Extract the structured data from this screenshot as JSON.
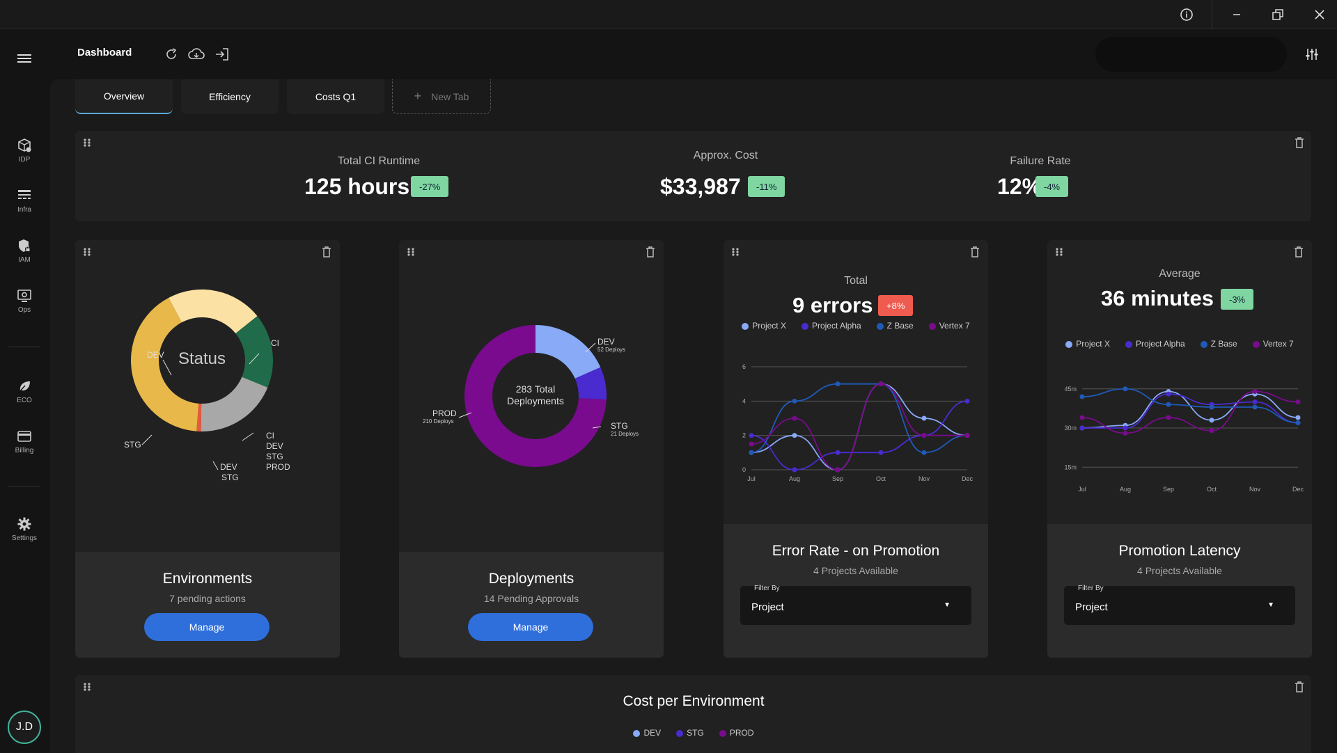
{
  "window": {
    "info": "ⓘ",
    "minimize": "—",
    "restore": "❐",
    "close": "✕"
  },
  "header": {
    "title": "Dashboard"
  },
  "sidebar": {
    "items": [
      {
        "label": "IDP"
      },
      {
        "label": "Infra"
      },
      {
        "label": "IAM"
      },
      {
        "label": "Ops"
      },
      {
        "label": "ECO"
      },
      {
        "label": "Billing"
      },
      {
        "label": "Settings"
      }
    ],
    "user_initials": "J.D"
  },
  "tabs": [
    {
      "label": "Overview"
    },
    {
      "label": "Efficiency"
    },
    {
      "label": "Costs Q1"
    },
    {
      "label": "New Tab"
    }
  ],
  "kpis": [
    {
      "label": "Total CI Runtime",
      "value": "125 hours",
      "delta": "-27%"
    },
    {
      "label": "Approx. Cost",
      "value": "$33,987",
      "delta": "-11%"
    },
    {
      "label": "Failure Rate",
      "value": "12%",
      "delta": "-4%"
    }
  ],
  "environments": {
    "center": "Status",
    "labels": {
      "dev": "DEV",
      "ci": "CI",
      "stg": "STG",
      "multi": [
        "CI",
        "DEV",
        "STG",
        "PROD"
      ],
      "devstg": [
        "DEV",
        "STG"
      ]
    },
    "title": "Environments",
    "subtitle": "7 pending actions",
    "button": "Manage",
    "colors": {
      "dev": "#fbe1a4",
      "ci": "#1f6b4a",
      "gray": "#a8a8a8",
      "red": "#e55a3c",
      "stg": "#e8b84a"
    }
  },
  "deployments": {
    "center_line1": "283 Total",
    "center_line2": "Deployments",
    "dev": {
      "label": "DEV",
      "sub": "52 Deploys",
      "value": 52
    },
    "stg": {
      "label": "STG",
      "sub": "21 Deploys",
      "value": 21
    },
    "prod": {
      "label": "PROD",
      "sub": "210 Deploys",
      "value": 210
    },
    "title": "Deployments",
    "subtitle": "14 Pending Approvals",
    "button": "Manage",
    "colors": {
      "dev": "#89aaf7",
      "stg": "#4a2bd0",
      "prod": "#7a0b8e"
    }
  },
  "error_rate": {
    "kicker": "Total",
    "value": "9 errors",
    "delta": "+8%",
    "title": "Error Rate - on Promotion",
    "subtitle": "4 Projects Available",
    "filter_label": "Filter By",
    "filter_value": "Project"
  },
  "latency": {
    "kicker": "Average",
    "value": "36 minutes",
    "delta": "-3%",
    "title": "Promotion Latency",
    "subtitle": "4 Projects Available",
    "filter_label": "Filter By",
    "filter_value": "Project"
  },
  "cost_env": {
    "title": "Cost per Environment",
    "legend": [
      {
        "name": "DEV",
        "color": "#89aaf7"
      },
      {
        "name": "STG",
        "color": "#4a2bd0"
      },
      {
        "name": "PROD",
        "color": "#7a0b8e"
      }
    ]
  },
  "chart_data": [
    {
      "type": "pie",
      "title": "Status",
      "categories": [
        "DEV",
        "CI",
        "CI / DEV / STG / PROD",
        "DEV / STG",
        "STG"
      ],
      "values": [
        22,
        17,
        19,
        1,
        41
      ]
    },
    {
      "type": "pie",
      "title": "283 Total Deployments",
      "categories": [
        "DEV",
        "STG",
        "PROD"
      ],
      "values": [
        52,
        21,
        210
      ]
    },
    {
      "type": "line",
      "title": "9 errors",
      "x": [
        "Jul",
        "Aug",
        "Sep",
        "Oct",
        "Nov",
        "Dec"
      ],
      "ylim": [
        0,
        6
      ],
      "yticks": [
        "0",
        "2",
        "4",
        "6"
      ],
      "series": [
        {
          "name": "Project X",
          "color": "#89aaf7",
          "values": [
            1,
            2,
            0,
            5,
            3,
            2
          ]
        },
        {
          "name": "Project Alpha",
          "color": "#4a2bd0",
          "values": [
            2,
            0,
            1,
            1,
            2,
            4
          ]
        },
        {
          "name": "Z Base",
          "color": "#1f5ab8",
          "values": [
            1,
            4,
            5,
            5,
            1,
            2
          ]
        },
        {
          "name": "Vertex 7",
          "color": "#7a0b8e",
          "values": [
            1.5,
            3,
            0,
            5,
            2,
            2
          ]
        }
      ]
    },
    {
      "type": "line",
      "title": "36 minutes",
      "x": [
        "Jul",
        "Aug",
        "Sep",
        "Oct",
        "Nov",
        "Dec"
      ],
      "ylim": [
        10,
        50
      ],
      "yticks": [
        "15m",
        "30m",
        "45m"
      ],
      "ytick_values": [
        15,
        30,
        45
      ],
      "series": [
        {
          "name": "Project X",
          "color": "#89aaf7",
          "values": [
            30,
            31,
            44,
            33,
            43,
            34
          ]
        },
        {
          "name": "Project Alpha",
          "color": "#4a2bd0",
          "values": [
            30,
            30,
            43,
            39,
            40,
            32
          ]
        },
        {
          "name": "Z Base",
          "color": "#1f5ab8",
          "values": [
            42,
            45,
            39,
            38,
            38,
            32
          ]
        },
        {
          "name": "Vertex 7",
          "color": "#7a0b8e",
          "values": [
            34,
            28,
            34,
            29,
            44,
            40
          ]
        }
      ]
    }
  ]
}
